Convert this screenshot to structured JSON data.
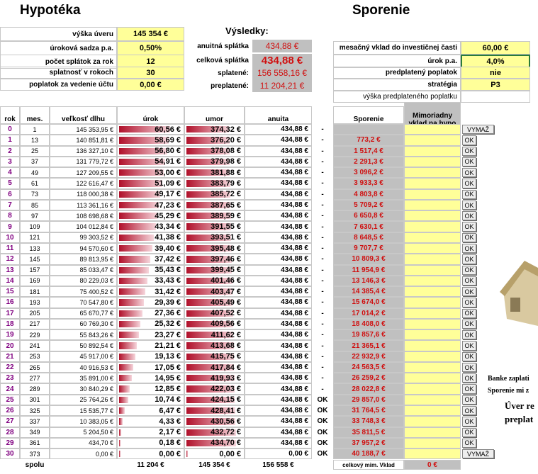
{
  "header": {
    "left_title": "Hypotéka",
    "right_title": "Sporenie"
  },
  "loan_inputs": [
    {
      "label": "výška úveru",
      "value": "145 354 €"
    },
    {
      "label": "úroková sadza p.a.",
      "value": "0,50%"
    },
    {
      "label": "počet splátok za rok",
      "value": "12"
    },
    {
      "label": "splatnosť v rokoch",
      "value": "30"
    },
    {
      "label": "poplatok za vedenie účtu",
      "value": "0,00 €"
    }
  ],
  "results": {
    "title": "Výsledky:",
    "rows": [
      {
        "label": "anuitná splátka",
        "value": "434,88 €"
      },
      {
        "label": "celková splátka",
        "value": "434,88 €"
      },
      {
        "label": "splatené:",
        "value": "156 558,16 €"
      },
      {
        "label": "preplatené:",
        "value": "11 204,21 €"
      }
    ]
  },
  "savings_inputs": [
    {
      "label": "mesačný vklad do investičnej časti",
      "value": "60,00 €"
    },
    {
      "label": "úrok p.a.",
      "value": "4,0%"
    },
    {
      "label": "predplatený poplatok",
      "value": "nie"
    },
    {
      "label": "stratégia",
      "value": "P3"
    },
    {
      "label": "výška predplateného poplatku",
      "value": null
    }
  ],
  "table": {
    "columns": [
      "rok",
      "mes.",
      "veľkosť dlhu",
      "úrok",
      "umor",
      "anuita",
      "Sporenie",
      "Mimoriadny vklad na hypo"
    ],
    "rows": [
      [
        "0",
        "1",
        "145 353,95 €",
        "60,56 €",
        "374,32 €",
        "434,88 €",
        "-",
        null,
        "VYMAŽ"
      ],
      [
        "1",
        "13",
        "140 851,81 €",
        "58,69 €",
        "376,20 €",
        "434,88 €",
        "-",
        "773,2 €",
        "OK"
      ],
      [
        "2",
        "25",
        "136 327,10 €",
        "56,80 €",
        "378,08 €",
        "434,88 €",
        "-",
        "1 517,4 €",
        "OK"
      ],
      [
        "3",
        "37",
        "131 779,72 €",
        "54,91 €",
        "379,98 €",
        "434,88 €",
        "-",
        "2 291,3 €",
        "OK"
      ],
      [
        "4",
        "49",
        "127 209,55 €",
        "53,00 €",
        "381,88 €",
        "434,88 €",
        "-",
        "3 096,2 €",
        "OK"
      ],
      [
        "5",
        "61",
        "122 616,47 €",
        "51,09 €",
        "383,79 €",
        "434,88 €",
        "-",
        "3 933,3 €",
        "OK"
      ],
      [
        "6",
        "73",
        "118 000,38 €",
        "49,17 €",
        "385,72 €",
        "434,88 €",
        "-",
        "4 803,8 €",
        "OK"
      ],
      [
        "7",
        "85",
        "113 361,16 €",
        "47,23 €",
        "387,65 €",
        "434,88 €",
        "-",
        "5 709,2 €",
        "OK"
      ],
      [
        "8",
        "97",
        "108 698,68 €",
        "45,29 €",
        "389,59 €",
        "434,88 €",
        "-",
        "6 650,8 €",
        "OK"
      ],
      [
        "9",
        "109",
        "104 012,84 €",
        "43,34 €",
        "391,55 €",
        "434,88 €",
        "-",
        "7 630,1 €",
        "OK"
      ],
      [
        "10",
        "121",
        "99 303,52 €",
        "41,38 €",
        "393,51 €",
        "434,88 €",
        "-",
        "8 648,5 €",
        "OK"
      ],
      [
        "11",
        "133",
        "94 570,60 €",
        "39,40 €",
        "395,48 €",
        "434,88 €",
        "-",
        "9 707,7 €",
        "OK"
      ],
      [
        "12",
        "145",
        "89 813,95 €",
        "37,42 €",
        "397,46 €",
        "434,88 €",
        "-",
        "10 809,3 €",
        "OK"
      ],
      [
        "13",
        "157",
        "85 033,47 €",
        "35,43 €",
        "399,45 €",
        "434,88 €",
        "-",
        "11 954,9 €",
        "OK"
      ],
      [
        "14",
        "169",
        "80 229,03 €",
        "33,43 €",
        "401,46 €",
        "434,88 €",
        "-",
        "13 146,3 €",
        "OK"
      ],
      [
        "15",
        "181",
        "75 400,52 €",
        "31,42 €",
        "403,47 €",
        "434,88 €",
        "-",
        "14 385,4 €",
        "OK"
      ],
      [
        "16",
        "193",
        "70 547,80 €",
        "29,39 €",
        "405,49 €",
        "434,88 €",
        "-",
        "15 674,0 €",
        "OK"
      ],
      [
        "17",
        "205",
        "65 670,77 €",
        "27,36 €",
        "407,52 €",
        "434,88 €",
        "-",
        "17 014,2 €",
        "OK"
      ],
      [
        "18",
        "217",
        "60 769,30 €",
        "25,32 €",
        "409,56 €",
        "434,88 €",
        "-",
        "18 408,0 €",
        "OK"
      ],
      [
        "19",
        "229",
        "55 843,26 €",
        "23,27 €",
        "411,62 €",
        "434,88 €",
        "-",
        "19 857,6 €",
        "OK"
      ],
      [
        "20",
        "241",
        "50 892,54 €",
        "21,21 €",
        "413,68 €",
        "434,88 €",
        "-",
        "21 365,1 €",
        "OK"
      ],
      [
        "21",
        "253",
        "45 917,00 €",
        "19,13 €",
        "415,75 €",
        "434,88 €",
        "-",
        "22 932,9 €",
        "OK"
      ],
      [
        "22",
        "265",
        "40 916,53 €",
        "17,05 €",
        "417,84 €",
        "434,88 €",
        "-",
        "24 563,5 €",
        "OK"
      ],
      [
        "23",
        "277",
        "35 891,00 €",
        "14,95 €",
        "419,93 €",
        "434,88 €",
        "-",
        "26 259,2 €",
        "OK"
      ],
      [
        "24",
        "289",
        "30 840,29 €",
        "12,85 €",
        "422,03 €",
        "434,88 €",
        "-",
        "28 022,8 €",
        "OK"
      ],
      [
        "25",
        "301",
        "25 764,26 €",
        "10,74 €",
        "424,15 €",
        "434,88 €",
        "OK",
        "29 857,0 €",
        "OK"
      ],
      [
        "26",
        "325",
        "15 535,77 €",
        "6,47 €",
        "428,41 €",
        "434,88 €",
        "OK",
        "31 764,5 €",
        "OK"
      ],
      [
        "27",
        "337",
        "10 383,05 €",
        "4,33 €",
        "430,56 €",
        "434,88 €",
        "OK",
        "33 748,3 €",
        "OK"
      ],
      [
        "28",
        "349",
        "5 204,50 €",
        "2,17 €",
        "432,72 €",
        "434,88 €",
        "OK",
        "35 811,5 €",
        "OK"
      ],
      [
        "29",
        "361",
        "434,70 €",
        "0,18 €",
        "434,70 €",
        "434,88 €",
        "OK",
        "37 957,2 €",
        "OK"
      ],
      [
        "30",
        "373",
        "0,00 €",
        "0,00 €",
        "0,00 €",
        "0,00 €",
        "OK",
        "40 188,7 €",
        "VYMAŽ"
      ]
    ],
    "footer": {
      "label": "spolu",
      "urok": "11 204 €",
      "umor": "145 354 €",
      "anuita": "156 558 €",
      "mim_label": "celkový mim. Vklad",
      "mim_value": "0 €"
    }
  },
  "side_text": [
    "Banke zaplati",
    "Sporenie mi z",
    "Úver re",
    "preplat"
  ]
}
